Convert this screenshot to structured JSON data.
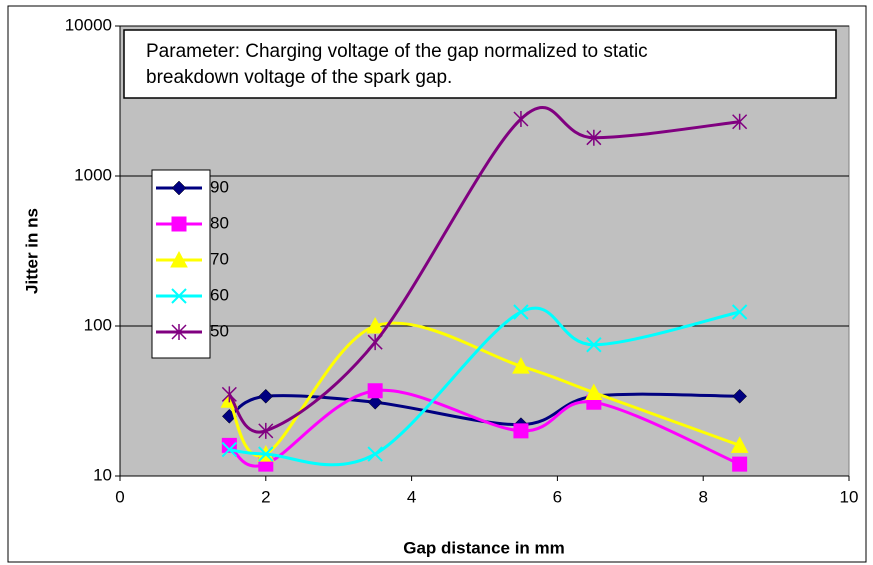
{
  "chart_data": {
    "type": "line",
    "annotation": [
      "Parameter: Charging voltage of the gap normalized to static",
      "breakdown voltage of the spark gap."
    ],
    "x_label": "Gap distance in mm",
    "y_label": "Jitter  in ns",
    "x": [
      1.5,
      2,
      3.5,
      5.5,
      6.5,
      8.5
    ],
    "series": [
      {
        "name": "90",
        "color": "#000080",
        "marker": "diamond",
        "values": [
          25,
          34,
          31,
          22,
          34,
          34
        ]
      },
      {
        "name": "80",
        "color": "#ff00ff",
        "marker": "square",
        "values": [
          16,
          12,
          37,
          20,
          31,
          12
        ]
      },
      {
        "name": "70",
        "color": "#ffff00",
        "marker": "triangle",
        "values": [
          32,
          14,
          100,
          54,
          36,
          16
        ]
      },
      {
        "name": "60",
        "color": "#00ffff",
        "marker": "x",
        "values": [
          15,
          14,
          14,
          124,
          75,
          124
        ]
      },
      {
        "name": "50",
        "color": "#800080",
        "marker": "asterisk",
        "values": [
          35,
          20,
          78,
          2400,
          1800,
          2300
        ]
      }
    ],
    "xlim": [
      0,
      10
    ],
    "xticks": [
      0,
      2,
      4,
      6,
      8,
      10
    ],
    "ylim": [
      10,
      10000
    ],
    "yticks": [
      10,
      100,
      1000,
      10000
    ],
    "yscale": "log",
    "grid": true,
    "smooth": true,
    "plot_background": "#c0c0c0"
  }
}
